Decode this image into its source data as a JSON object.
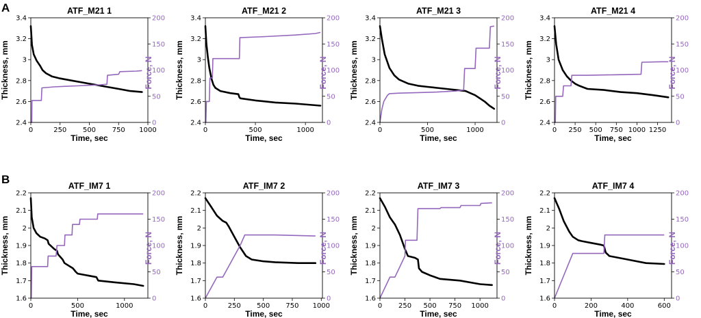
{
  "panel_labels": [
    "A",
    "B"
  ],
  "colors": {
    "thickness": "#000000",
    "force": "#9467bd"
  },
  "chart_data": [
    {
      "type": "line",
      "title": "ATF_M21 1",
      "xlabel": "Time, sec",
      "ylabel": "Thickness, mm",
      "y2label": "Force, N",
      "xlim": [
        0,
        1000
      ],
      "ylim": [
        2.4,
        3.4
      ],
      "y2lim": [
        0,
        200
      ],
      "xticks": [
        0,
        250,
        500,
        750,
        1000
      ],
      "yticks": [
        2.4,
        2.6,
        2.8,
        3.0,
        3.2,
        3.4
      ],
      "y2ticks": [
        0,
        50,
        100,
        150,
        200
      ],
      "series": [
        {
          "name": "Thickness",
          "axis": "left",
          "x": [
            0,
            10,
            25,
            50,
            80,
            100,
            130,
            180,
            250,
            350,
            450,
            550,
            650,
            750,
            850,
            950
          ],
          "y": [
            3.32,
            3.14,
            3.05,
            2.99,
            2.94,
            2.9,
            2.87,
            2.84,
            2.82,
            2.8,
            2.78,
            2.76,
            2.74,
            2.72,
            2.7,
            2.69
          ]
        },
        {
          "name": "Force",
          "axis": "right",
          "x": [
            0,
            8,
            10,
            90,
            95,
            200,
            300,
            400,
            500,
            600,
            650,
            655,
            750,
            760,
            900,
            950
          ],
          "y": [
            0,
            0,
            42,
            42,
            66,
            68,
            69,
            70,
            71,
            72,
            73,
            90,
            92,
            97,
            98,
            99
          ]
        }
      ]
    },
    {
      "type": "line",
      "title": "ATF_M21 2",
      "xlabel": "Time, sec",
      "ylabel": "Thickness, mm",
      "y2label": "Force, N",
      "xlim": [
        0,
        1170
      ],
      "ylim": [
        2.4,
        3.4
      ],
      "y2lim": [
        0,
        200
      ],
      "xticks": [
        0,
        500,
        1000
      ],
      "yticks": [
        2.4,
        2.6,
        2.8,
        3.0,
        3.2,
        3.4
      ],
      "y2ticks": [
        0,
        50,
        100,
        150,
        200
      ],
      "series": [
        {
          "name": "Thickness",
          "axis": "left",
          "x": [
            0,
            10,
            25,
            40,
            60,
            80,
            100,
            150,
            250,
            330,
            340,
            350,
            500,
            700,
            900,
            1150
          ],
          "y": [
            3.32,
            3.15,
            3.02,
            2.92,
            2.82,
            2.76,
            2.73,
            2.7,
            2.68,
            2.67,
            2.64,
            2.63,
            2.61,
            2.59,
            2.58,
            2.56
          ]
        },
        {
          "name": "Force",
          "axis": "right",
          "x": [
            0,
            5,
            10,
            40,
            45,
            70,
            75,
            340,
            345,
            600,
            900,
            1100,
            1150
          ],
          "y": [
            0,
            0,
            40,
            40,
            85,
            85,
            122,
            122,
            162,
            164,
            167,
            170,
            172
          ]
        }
      ]
    },
    {
      "type": "line",
      "title": "ATF_M21 3",
      "xlabel": "Time, sec",
      "ylabel": "Thickness, mm",
      "y2label": "Force, N",
      "xlim": [
        0,
        1230
      ],
      "ylim": [
        2.4,
        3.4
      ],
      "y2lim": [
        0,
        200
      ],
      "xticks": [
        0,
        500,
        1000
      ],
      "yticks": [
        2.4,
        2.6,
        2.8,
        3.0,
        3.2,
        3.4
      ],
      "y2ticks": [
        0,
        50,
        100,
        150,
        200
      ],
      "series": [
        {
          "name": "Thickness",
          "axis": "left",
          "x": [
            0,
            20,
            50,
            100,
            150,
            200,
            300,
            400,
            500,
            600,
            700,
            800,
            900,
            950,
            1000,
            1050,
            1100,
            1150,
            1200
          ],
          "y": [
            3.32,
            3.2,
            3.05,
            2.92,
            2.85,
            2.81,
            2.77,
            2.75,
            2.74,
            2.73,
            2.72,
            2.71,
            2.7,
            2.68,
            2.66,
            2.63,
            2.6,
            2.56,
            2.53
          ]
        },
        {
          "name": "Force",
          "axis": "right",
          "x": [
            0,
            20,
            40,
            80,
            100,
            200,
            400,
            600,
            800,
            880,
            890,
            1000,
            1010,
            1060,
            1070,
            1150,
            1160,
            1200
          ],
          "y": [
            0,
            25,
            40,
            52,
            55,
            56,
            57,
            58,
            60,
            62,
            103,
            103,
            142,
            142,
            142,
            142,
            183,
            184
          ]
        }
      ]
    },
    {
      "type": "line",
      "title": "ATF_M21 4",
      "xlabel": "Time, sec",
      "ylabel": "Thickness, mm",
      "y2label": "Force, N",
      "xlim": [
        0,
        1420
      ],
      "ylim": [
        2.4,
        3.4
      ],
      "y2lim": [
        0,
        200
      ],
      "xticks": [
        0,
        250,
        500,
        750,
        1000,
        1250
      ],
      "yticks": [
        2.4,
        2.6,
        2.8,
        3.0,
        3.2,
        3.4
      ],
      "y2ticks": [
        0,
        50,
        100,
        150,
        200
      ],
      "series": [
        {
          "name": "Thickness",
          "axis": "left",
          "x": [
            0,
            20,
            50,
            100,
            150,
            200,
            250,
            300,
            400,
            600,
            800,
            1000,
            1200,
            1380
          ],
          "y": [
            3.32,
            3.15,
            3.0,
            2.9,
            2.84,
            2.8,
            2.77,
            2.75,
            2.72,
            2.71,
            2.69,
            2.68,
            2.66,
            2.64
          ]
        },
        {
          "name": "Force",
          "axis": "right",
          "x": [
            0,
            10,
            15,
            100,
            110,
            200,
            210,
            400,
            700,
            1050,
            1060,
            1300,
            1380
          ],
          "y": [
            0,
            0,
            50,
            50,
            70,
            70,
            90,
            90,
            91,
            92,
            115,
            116,
            116
          ]
        }
      ]
    },
    {
      "type": "line",
      "title": "ATF_IM7 1",
      "xlabel": "Time, sec",
      "ylabel": "Thickness, mm",
      "y2label": "Force, N",
      "xlim": [
        0,
        1250
      ],
      "ylim": [
        1.6,
        2.2
      ],
      "y2lim": [
        0,
        200
      ],
      "xticks": [
        0,
        500,
        1000
      ],
      "yticks": [
        1.6,
        1.7,
        1.8,
        1.9,
        2.0,
        2.1,
        2.2
      ],
      "y2ticks": [
        0,
        50,
        100,
        150,
        200
      ],
      "series": [
        {
          "name": "Thickness",
          "axis": "left",
          "x": [
            0,
            10,
            30,
            60,
            100,
            150,
            180,
            190,
            250,
            280,
            290,
            340,
            360,
            450,
            480,
            500,
            700,
            720,
            900,
            1100,
            1200
          ],
          "y": [
            2.17,
            2.06,
            2.0,
            1.97,
            1.95,
            1.94,
            1.93,
            1.91,
            1.88,
            1.87,
            1.85,
            1.82,
            1.8,
            1.77,
            1.75,
            1.74,
            1.72,
            1.7,
            1.69,
            1.68,
            1.67
          ]
        },
        {
          "name": "Force",
          "axis": "right",
          "x": [
            0,
            5,
            10,
            180,
            185,
            270,
            280,
            360,
            365,
            440,
            445,
            520,
            525,
            710,
            715,
            1200
          ],
          "y": [
            0,
            0,
            60,
            60,
            80,
            80,
            100,
            100,
            120,
            120,
            140,
            140,
            150,
            150,
            160,
            160
          ]
        }
      ]
    },
    {
      "type": "line",
      "title": "ATF_IM7 2",
      "xlabel": "Time, sec",
      "ylabel": "Thickness, mm",
      "y2label": "Force, N",
      "xlim": [
        0,
        1010
      ],
      "ylim": [
        1.6,
        2.2
      ],
      "y2lim": [
        0,
        200
      ],
      "xticks": [
        0,
        250,
        500,
        750,
        1000
      ],
      "yticks": [
        1.6,
        1.7,
        1.8,
        1.9,
        2.0,
        2.1,
        2.2
      ],
      "y2ticks": [
        0,
        50,
        100,
        150,
        200
      ],
      "series": [
        {
          "name": "Thickness",
          "axis": "left",
          "x": [
            0,
            50,
            100,
            150,
            180,
            200,
            250,
            300,
            350,
            400,
            500,
            600,
            800,
            950
          ],
          "y": [
            2.17,
            2.12,
            2.07,
            2.04,
            2.03,
            2.01,
            1.95,
            1.89,
            1.84,
            1.82,
            1.81,
            1.805,
            1.8,
            1.8
          ]
        },
        {
          "name": "Force",
          "axis": "right",
          "x": [
            0,
            100,
            150,
            200,
            250,
            300,
            340,
            600,
            800,
            950
          ],
          "y": [
            0,
            40,
            40,
            60,
            80,
            100,
            120,
            120,
            119,
            118
          ]
        }
      ]
    },
    {
      "type": "line",
      "title": "ATF_IM7 3",
      "xlabel": "Time, sec",
      "ylabel": "Thickness, mm",
      "y2label": "Force, N",
      "xlim": [
        0,
        1170
      ],
      "ylim": [
        1.6,
        2.2
      ],
      "y2lim": [
        0,
        200
      ],
      "xticks": [
        0,
        250,
        500,
        750,
        1000
      ],
      "yticks": [
        1.6,
        1.7,
        1.8,
        1.9,
        2.0,
        2.1,
        2.2
      ],
      "y2ticks": [
        0,
        50,
        100,
        150,
        200
      ],
      "series": [
        {
          "name": "Thickness",
          "axis": "left",
          "x": [
            0,
            50,
            100,
            150,
            200,
            250,
            280,
            350,
            380,
            390,
            420,
            500,
            600,
            800,
            1000,
            1120
          ],
          "y": [
            2.17,
            2.12,
            2.06,
            2.02,
            1.96,
            1.88,
            1.84,
            1.83,
            1.82,
            1.77,
            1.75,
            1.73,
            1.71,
            1.7,
            1.68,
            1.675
          ]
        },
        {
          "name": "Force",
          "axis": "right",
          "x": [
            0,
            100,
            150,
            200,
            250,
            255,
            370,
            380,
            600,
            610,
            800,
            810,
            1000,
            1010,
            1120
          ],
          "y": [
            0,
            40,
            40,
            60,
            80,
            110,
            110,
            170,
            170,
            172,
            172,
            176,
            176,
            180,
            181
          ]
        }
      ]
    },
    {
      "type": "line",
      "title": "ATF_IM7 4",
      "xlabel": "Time, sec",
      "ylabel": "Thickness, mm",
      "y2label": "Force, N",
      "xlim": [
        0,
        640
      ],
      "ylim": [
        1.6,
        2.2
      ],
      "y2lim": [
        0,
        200
      ],
      "xticks": [
        0,
        200,
        400,
        600
      ],
      "yticks": [
        1.6,
        1.7,
        1.8,
        1.9,
        2.0,
        2.1,
        2.2
      ],
      "y2ticks": [
        0,
        50,
        100,
        150,
        200
      ],
      "series": [
        {
          "name": "Thickness",
          "axis": "left",
          "x": [
            0,
            25,
            50,
            80,
            100,
            130,
            150,
            200,
            250,
            270,
            280,
            300,
            400,
            500,
            600
          ],
          "y": [
            2.17,
            2.11,
            2.04,
            1.98,
            1.95,
            1.93,
            1.925,
            1.915,
            1.905,
            1.9,
            1.86,
            1.84,
            1.82,
            1.8,
            1.795
          ]
        },
        {
          "name": "Force",
          "axis": "right",
          "x": [
            0,
            100,
            270,
            275,
            600
          ],
          "y": [
            0,
            85,
            85,
            120,
            120
          ]
        }
      ]
    }
  ]
}
